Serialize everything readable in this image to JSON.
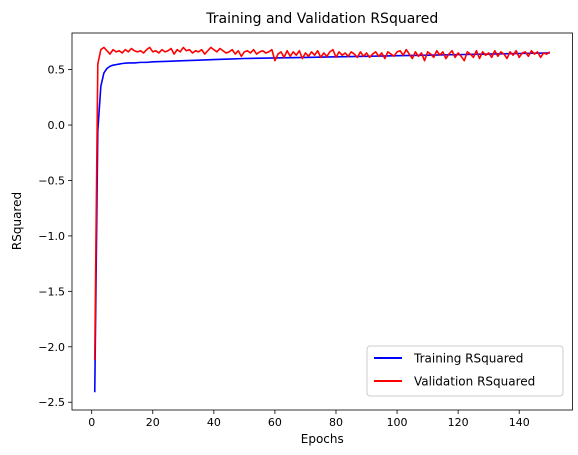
{
  "chart_data": {
    "type": "line",
    "title": "Training and Validation RSquared",
    "xlabel": "Epochs",
    "ylabel": "RSquared",
    "xlim": [
      -6.45,
      157.45
    ],
    "ylim": [
      -2.57,
      0.83
    ],
    "xticks": [
      0,
      20,
      40,
      60,
      80,
      100,
      120,
      140
    ],
    "yticks": [
      -2.5,
      -2.0,
      -1.5,
      -1.0,
      -0.5,
      0.0,
      0.5
    ],
    "ytick_labels": [
      "−2.5",
      "−2.0",
      "−1.5",
      "−1.0",
      "−0.5",
      "0.0",
      "0.5"
    ],
    "grid": false,
    "legend_position": "lower-right",
    "series": [
      {
        "name": "Training RSquared",
        "color": "#0000ff",
        "x": [
          1,
          2,
          3,
          4,
          5,
          6,
          7,
          8,
          9,
          10,
          12,
          14,
          16,
          18,
          20,
          25,
          30,
          35,
          40,
          45,
          50,
          60,
          70,
          80,
          90,
          100,
          110,
          120,
          130,
          140,
          150
        ],
        "y": [
          -2.41,
          -0.05,
          0.35,
          0.47,
          0.51,
          0.53,
          0.54,
          0.545,
          0.55,
          0.555,
          0.56,
          0.56,
          0.565,
          0.565,
          0.57,
          0.575,
          0.58,
          0.585,
          0.59,
          0.595,
          0.6,
          0.605,
          0.61,
          0.615,
          0.62,
          0.625,
          0.63,
          0.635,
          0.64,
          0.645,
          0.65
        ]
      },
      {
        "name": "Validation RSquared",
        "color": "#ff0000",
        "x": [
          1,
          2,
          3,
          4,
          5,
          6,
          7,
          8,
          9,
          10,
          11,
          12,
          13,
          14,
          15,
          16,
          17,
          18,
          19,
          20,
          21,
          22,
          23,
          24,
          25,
          26,
          27,
          28,
          29,
          30,
          31,
          32,
          33,
          34,
          35,
          36,
          37,
          38,
          39,
          40,
          41,
          42,
          43,
          44,
          45,
          46,
          47,
          48,
          49,
          50,
          51,
          52,
          53,
          54,
          55,
          56,
          57,
          58,
          59,
          60,
          61,
          62,
          63,
          64,
          65,
          66,
          67,
          68,
          69,
          70,
          71,
          72,
          73,
          74,
          75,
          76,
          77,
          78,
          79,
          80,
          81,
          82,
          83,
          84,
          85,
          86,
          87,
          88,
          89,
          90,
          91,
          92,
          93,
          94,
          95,
          96,
          97,
          98,
          99,
          100,
          101,
          102,
          103,
          104,
          105,
          106,
          107,
          108,
          109,
          110,
          111,
          112,
          113,
          114,
          115,
          116,
          117,
          118,
          119,
          120,
          121,
          122,
          123,
          124,
          125,
          126,
          127,
          128,
          129,
          130,
          131,
          132,
          133,
          134,
          135,
          136,
          137,
          138,
          139,
          140,
          141,
          142,
          143,
          144,
          145,
          146,
          147,
          148,
          149,
          150
        ],
        "y": [
          -2.12,
          0.55,
          0.68,
          0.7,
          0.67,
          0.64,
          0.68,
          0.66,
          0.67,
          0.65,
          0.68,
          0.66,
          0.69,
          0.67,
          0.66,
          0.67,
          0.65,
          0.68,
          0.7,
          0.66,
          0.67,
          0.65,
          0.68,
          0.66,
          0.67,
          0.69,
          0.64,
          0.68,
          0.66,
          0.7,
          0.67,
          0.68,
          0.65,
          0.67,
          0.66,
          0.68,
          0.64,
          0.67,
          0.7,
          0.68,
          0.66,
          0.69,
          0.67,
          0.65,
          0.66,
          0.68,
          0.64,
          0.67,
          0.62,
          0.66,
          0.67,
          0.65,
          0.68,
          0.64,
          0.66,
          0.67,
          0.65,
          0.66,
          0.68,
          0.58,
          0.64,
          0.66,
          0.61,
          0.67,
          0.62,
          0.66,
          0.63,
          0.67,
          0.6,
          0.65,
          0.62,
          0.66,
          0.63,
          0.67,
          0.61,
          0.65,
          0.62,
          0.66,
          0.68,
          0.61,
          0.66,
          0.63,
          0.65,
          0.62,
          0.66,
          0.64,
          0.61,
          0.66,
          0.62,
          0.65,
          0.61,
          0.64,
          0.66,
          0.62,
          0.65,
          0.6,
          0.66,
          0.64,
          0.62,
          0.66,
          0.67,
          0.63,
          0.68,
          0.64,
          0.6,
          0.66,
          0.62,
          0.65,
          0.58,
          0.66,
          0.64,
          0.61,
          0.67,
          0.63,
          0.66,
          0.6,
          0.64,
          0.67,
          0.61,
          0.65,
          0.62,
          0.58,
          0.66,
          0.64,
          0.61,
          0.67,
          0.6,
          0.66,
          0.63,
          0.65,
          0.61,
          0.67,
          0.62,
          0.66,
          0.64,
          0.6,
          0.66,
          0.63,
          0.67,
          0.61,
          0.65,
          0.66,
          0.62,
          0.67,
          0.64,
          0.66,
          0.61,
          0.65,
          0.64,
          0.66
        ]
      }
    ]
  }
}
